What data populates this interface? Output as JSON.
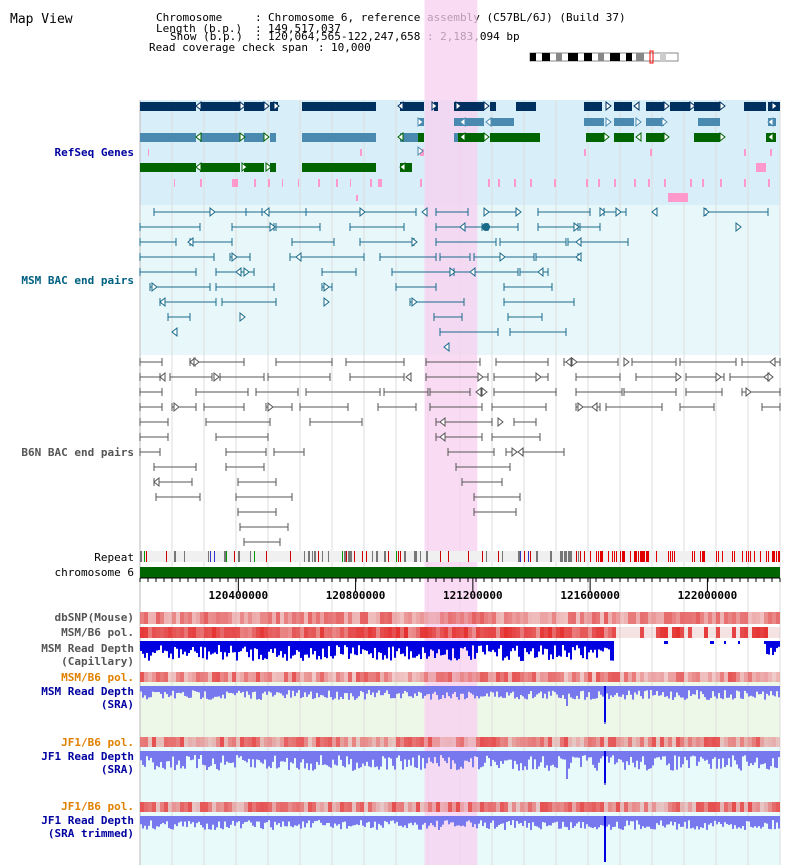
{
  "view": {
    "title": "Map View"
  },
  "header": {
    "chromosome_label": "Chromosome",
    "chromosome_value": "Chromosome 6, reference assembly (C57BL/6J) (Build 37)",
    "length_label": "Length (b.p.)",
    "length_value": "149,517,037",
    "show_label": "Show (b.p.)",
    "show_value": "120,064,565-122,247,658 : 2,183,094 bp",
    "coverage_label": "Read coverage check span",
    "coverage_value": "10,000"
  },
  "tracks": {
    "refseq": {
      "label": "RefSeq Genes",
      "color": "#0000a0"
    },
    "msm_bac": {
      "label": "MSM BAC end pairs",
      "color": "#006080"
    },
    "b6n_bac": {
      "label": "B6N BAC end pairs",
      "color": "#555555"
    },
    "repeat": {
      "label": "Repeat"
    },
    "chromosome": {
      "label": "chromosome 6"
    },
    "dbsnp": {
      "label": "dbSNP(Mouse)"
    },
    "msm_b6_pol_1": {
      "label": "MSM/B6 pol."
    },
    "msm_depth_cap": {
      "label_line1": "MSM Read Depth",
      "label_line2": "(Capillary)"
    },
    "msm_b6_pol_2": {
      "label": "MSM/B6 pol.",
      "color": "#e08000"
    },
    "msm_depth_sra": {
      "label_line1": "MSM Read Depth",
      "label_line2": "(SRA)",
      "color": "#0000a0"
    },
    "jf1_b6_pol_1": {
      "label": "JF1/B6 pol.",
      "color": "#e08000"
    },
    "jf1_depth_sra": {
      "label_line1": "JF1 Read Depth",
      "label_line2": "(SRA)",
      "color": "#0000a0"
    },
    "jf1_b6_pol_2": {
      "label": "JF1/B6 pol.",
      "color": "#e08000"
    },
    "jf1_depth_trim": {
      "label_line1": "JF1 Read Depth",
      "label_line2": "(SRA trimmed)",
      "color": "#0000a0"
    }
  },
  "axis": {
    "ticks": [
      {
        "pos": 120400000,
        "label": "120400000"
      },
      {
        "pos": 120800000,
        "label": "120800000"
      },
      {
        "pos": 121200000,
        "label": "121200000"
      },
      {
        "pos": 121600000,
        "label": "121600000"
      },
      {
        "pos": 122000000,
        "label": "122000000"
      }
    ],
    "start": 120064565,
    "end": 122247658
  },
  "highlight": {
    "start": 121035000,
    "end": 121215000
  },
  "colors": {
    "refseq_dark": "#00305f",
    "refseq_mid": "#4a8ab0",
    "refseq_green": "#006400",
    "refseq_pink": "#ff99cc",
    "msm_bac": "#1a6a8a",
    "b6n_bac": "#555555",
    "highlight": "#f8cff0",
    "repeat_bg": "#f0f0f0",
    "chrom": "#006400",
    "snp_red": "#e03030",
    "depth_blue": "#0000e0",
    "depth_lightblue": "#7777ee"
  }
}
